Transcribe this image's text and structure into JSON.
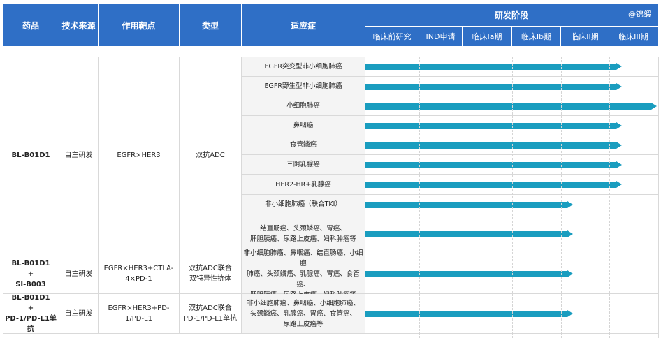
{
  "headers": {
    "drug": "药品",
    "source": "技术来源",
    "target": "作用靶点",
    "type": "类型",
    "indication": "适应症",
    "stage": "研发阶段",
    "watermark": "@锦缎"
  },
  "chart_data": {
    "type": "bar",
    "stages": [
      "临床前研究",
      "IND申请",
      "临床Ia期",
      "临床Ib期",
      "临床II期",
      "临床III期"
    ],
    "groups": [
      {
        "drug": "BL-B01D1",
        "source": "自主研发",
        "target": "EGFR×HER3",
        "type": "双抗ADC",
        "rows": [
          {
            "indication": "EGFR突变型非小细胞肺癌",
            "stage": "临床III期"
          },
          {
            "indication": "EGFR野生型非小细胞肺癌",
            "stage": "临床III期"
          },
          {
            "indication": "小细胞肺癌",
            "stage": "临床III期",
            "progress": 0.97
          },
          {
            "indication": "鼻咽癌",
            "stage": "临床III期"
          },
          {
            "indication": "食管鳞癌",
            "stage": "临床III期"
          },
          {
            "indication": "三阴乳腺癌",
            "stage": "临床III期"
          },
          {
            "indication": "HER2-HR+乳腺癌",
            "stage": "临床III期"
          },
          {
            "indication": "非小细胞肺癌（联合TKI）",
            "stage": "临床II期"
          },
          {
            "indication": "结直肠癌、头颈鳞癌、胃癌、\n肝胆胰癌、尿路上皮癌、妇科肿瘤等",
            "stage": "临床II期"
          }
        ]
      },
      {
        "drug": "BL-B01D1\n+\nSI-B003",
        "source": "自主研发",
        "target": "EGFR×HER3+CTLA-4×PD-1",
        "type": "双抗ADC联合\n双特异性抗体",
        "rows": [
          {
            "indication": "非小细胞肺癌、鼻咽癌、结直肠癌、小细胞\n肺癌、头颈鳞癌、乳腺癌、胃癌、食管癌、\n肝胆胰癌、尿路上皮癌、妇科肿瘤等",
            "stage": "临床II期"
          }
        ]
      },
      {
        "drug": "BL-B01D1\n+\nPD-1/PD-L1单抗",
        "source": "自主研发",
        "target": "EGFR×HER3+PD-1/PD-L1",
        "type": "双抗ADC联合\nPD-1/PD-L1单抗",
        "rows": [
          {
            "indication": "非小细胞肺癌、鼻咽癌、小细胞肺癌、\n头颈鳞癌、乳腺癌、胃癌、食管癌、\n尿路上皮癌等",
            "stage": "临床II期"
          }
        ]
      }
    ]
  }
}
